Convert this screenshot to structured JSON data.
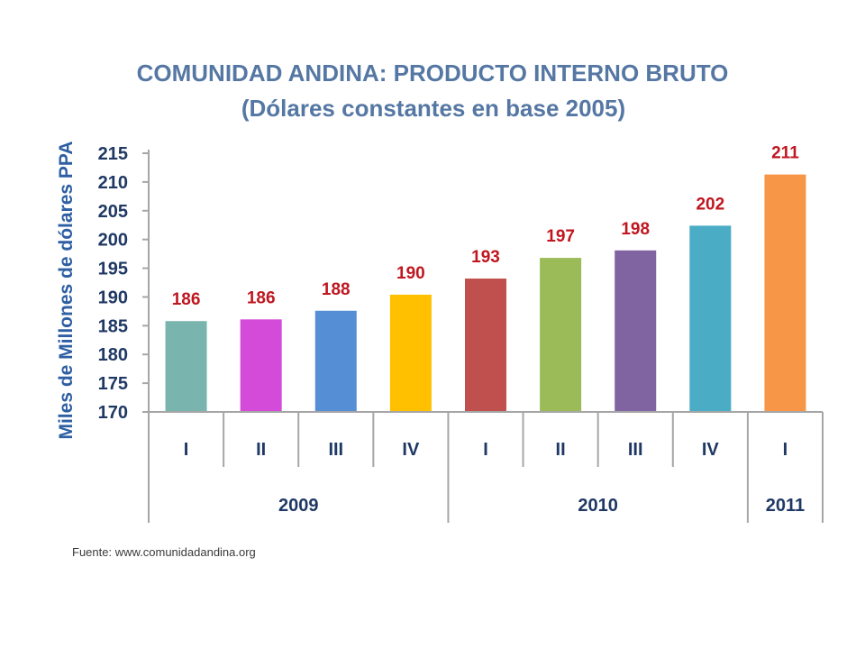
{
  "source": "Fuente: www.comunidadandina.org",
  "chart_data": {
    "type": "bar",
    "title": "COMUNIDAD ANDINA: PRODUCTO INTERNO BRUTO",
    "subtitle": "(Dólares constantes en base 2005)",
    "ylabel": "Miles de Millones de dólares PPA",
    "ylim": [
      170,
      215
    ],
    "yticks": [
      170,
      175,
      180,
      185,
      190,
      195,
      200,
      205,
      210,
      215
    ],
    "categories": [
      "I",
      "II",
      "III",
      "IV",
      "I",
      "II",
      "III",
      "IV",
      "I"
    ],
    "category_groups": [
      {
        "label": "2009",
        "count": 4
      },
      {
        "label": "2010",
        "count": 4
      },
      {
        "label": "2011",
        "count": 1
      }
    ],
    "values": [
      185.8,
      186.1,
      187.6,
      190.4,
      193.2,
      196.8,
      198.1,
      202.4,
      211.3
    ],
    "data_labels": [
      "186",
      "186",
      "188",
      "190",
      "193",
      "197",
      "198",
      "202",
      "211"
    ],
    "bar_colors": [
      "#79B4AE",
      "#D44BD9",
      "#558ED5",
      "#FFC000",
      "#C0504D",
      "#9BBB59",
      "#8064A2",
      "#4BACC6",
      "#F79646"
    ],
    "data_label_color": "#C0161F",
    "grid": false,
    "legend": false
  }
}
